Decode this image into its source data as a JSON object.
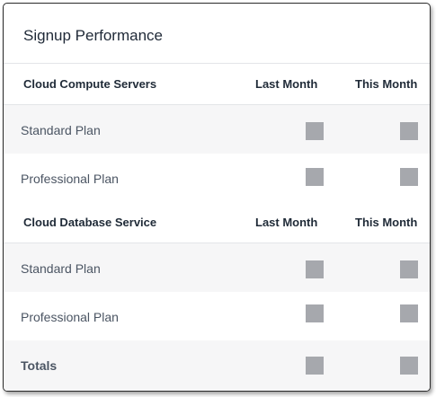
{
  "card": {
    "title": "Signup Performance"
  },
  "columns": {
    "last_month": "Last Month",
    "this_month": "This Month"
  },
  "sections": [
    {
      "name": "Cloud Compute Servers",
      "rows": [
        {
          "label": "Standard Plan"
        },
        {
          "label": "Professional Plan"
        }
      ]
    },
    {
      "name": "Cloud Database Service",
      "rows": [
        {
          "label": "Standard Plan"
        },
        {
          "label": "Professional Plan"
        }
      ]
    }
  ],
  "totals": {
    "label": "Totals"
  },
  "colors": {
    "placeholder": "#a6a8ad",
    "row_stripe": "#f6f6f7",
    "divider": "#e3e5e8"
  }
}
